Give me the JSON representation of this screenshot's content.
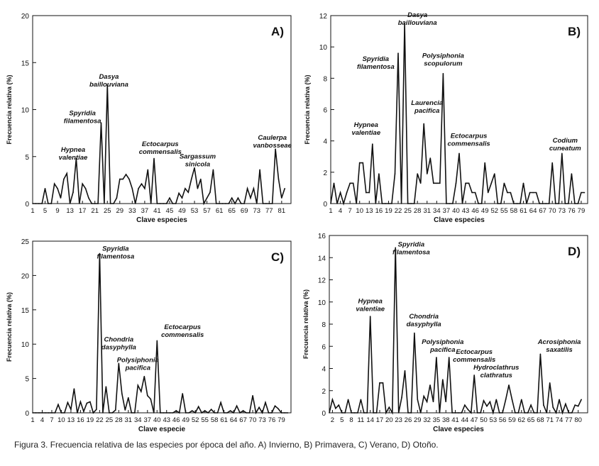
{
  "chart_data": [
    {
      "type": "line",
      "panel_label": "A)",
      "ylabel": "Frecuencia relativa (%)",
      "xlabel": "Clave especies",
      "ylim": [
        0,
        20
      ],
      "xlim": [
        1,
        84
      ],
      "yticks": [
        0,
        5,
        10,
        15,
        20
      ],
      "xticks": [
        1,
        5,
        9,
        13,
        17,
        21,
        25,
        29,
        33,
        37,
        41,
        45,
        49,
        53,
        57,
        61,
        65,
        69,
        73,
        77,
        81
      ],
      "x": [
        1,
        2,
        3,
        4,
        5,
        6,
        7,
        8,
        9,
        10,
        11,
        12,
        13,
        14,
        15,
        16,
        17,
        18,
        19,
        20,
        21,
        22,
        23,
        24,
        25,
        26,
        27,
        28,
        29,
        30,
        31,
        32,
        33,
        34,
        35,
        36,
        37,
        38,
        39,
        40,
        41,
        42,
        43,
        44,
        45,
        46,
        47,
        48,
        49,
        50,
        51,
        52,
        53,
        54,
        55,
        56,
        57,
        58,
        59,
        60,
        61,
        62,
        63,
        64,
        65,
        66,
        67,
        68,
        69,
        70,
        71,
        72,
        73,
        74,
        75,
        76,
        77,
        78,
        79,
        80,
        81,
        82
      ],
      "values": [
        0,
        0,
        0,
        0,
        1.6,
        0,
        0,
        2.1,
        1.6,
        0.6,
        2.6,
        3.2,
        0,
        1.2,
        4.8,
        0,
        2.1,
        1.6,
        0.6,
        0,
        0,
        0,
        8.6,
        0,
        12.6,
        0,
        0,
        0.6,
        2.6,
        2.6,
        3.1,
        2.6,
        1.6,
        0,
        1.6,
        2.1,
        1.6,
        3.6,
        0,
        4.8,
        0,
        0,
        0,
        0,
        0.6,
        0,
        0,
        1.1,
        0.6,
        1.6,
        1.2,
        2.6,
        3.8,
        1.6,
        2.6,
        0,
        0.6,
        1.2,
        3.6,
        0,
        0,
        0,
        0,
        0,
        0.6,
        0,
        0.6,
        0,
        0,
        1.6,
        0.6,
        1.6,
        0,
        3.6,
        0,
        0,
        0,
        0,
        5.8,
        2.6,
        0.6,
        1.6
      ],
      "annotations": [
        {
          "text": [
            "Hypnea",
            "valentiae"
          ],
          "x": 14,
          "y": 5.5
        },
        {
          "text": [
            "Spyridia",
            "filamentosa"
          ],
          "x": 17,
          "y": 9.4
        },
        {
          "text": [
            "Dasya",
            "baillouviana"
          ],
          "x": 25.5,
          "y": 13.3
        },
        {
          "text": [
            "Ectocarpus",
            "commensalis"
          ],
          "x": 42,
          "y": 6.1
        },
        {
          "text": [
            "Sargassum",
            "sinicola"
          ],
          "x": 54,
          "y": 4.8
        },
        {
          "text": [
            "Caulerpa",
            "vanbosseae"
          ],
          "x": 78,
          "y": 6.8
        }
      ]
    },
    {
      "type": "line",
      "panel_label": "B)",
      "ylabel": "Frecuencia relativa (%)",
      "xlabel": "Clave especies",
      "ylim": [
        0,
        12
      ],
      "xlim": [
        1,
        81
      ],
      "yticks": [
        0,
        2,
        4,
        6,
        8,
        10,
        12
      ],
      "xticks": [
        1,
        4,
        7,
        10,
        13,
        16,
        19,
        22,
        25,
        28,
        31,
        34,
        37,
        40,
        43,
        46,
        49,
        52,
        55,
        58,
        61,
        64,
        67,
        70,
        73,
        76,
        79
      ],
      "x": [
        1,
        2,
        3,
        4,
        5,
        6,
        7,
        8,
        9,
        10,
        11,
        12,
        13,
        14,
        15,
        16,
        17,
        18,
        19,
        20,
        21,
        22,
        23,
        24,
        25,
        26,
        27,
        28,
        29,
        30,
        31,
        32,
        33,
        34,
        35,
        36,
        37,
        38,
        39,
        40,
        41,
        42,
        43,
        44,
        45,
        46,
        47,
        48,
        49,
        50,
        51,
        52,
        53,
        54,
        55,
        56,
        57,
        58,
        59,
        60,
        61,
        62,
        63,
        64,
        65,
        66,
        67,
        68,
        69,
        70,
        71,
        72,
        73,
        74,
        75,
        76,
        77,
        78,
        79,
        80
      ],
      "values": [
        0,
        1.3,
        0,
        0.7,
        0,
        0.7,
        1.3,
        1.3,
        0,
        2.6,
        2.6,
        0.7,
        0.7,
        3.8,
        0,
        1.9,
        0,
        0,
        0,
        0,
        1.9,
        9.6,
        0,
        11.5,
        0,
        0,
        0,
        1.9,
        1.3,
        5.1,
        1.9,
        2.9,
        1.3,
        1.3,
        1.3,
        8.3,
        0,
        0,
        0,
        1.3,
        3.2,
        0,
        1.3,
        1.3,
        0.7,
        0.7,
        0,
        0,
        2.6,
        0.7,
        1.3,
        1.9,
        0,
        0,
        1.3,
        0.7,
        0.7,
        0,
        0,
        0,
        1.3,
        0,
        0.7,
        0.7,
        0.7,
        0,
        0,
        0,
        0,
        2.6,
        0,
        0,
        3.2,
        0,
        0,
        1.9,
        0,
        0,
        0.7,
        0.7
      ],
      "annotations": [
        {
          "text": [
            "Hypnea",
            "valentiae"
          ],
          "x": 12,
          "y": 4.9
        },
        {
          "text": [
            "Spyridia",
            "filamentosa"
          ],
          "x": 15,
          "y": 9.1
        },
        {
          "text": [
            "Dasya",
            "baillouviana"
          ],
          "x": 28,
          "y": 11.9
        },
        {
          "text": [
            "Laurencia",
            "pacifica"
          ],
          "x": 31,
          "y": 6.3
        },
        {
          "text": [
            "Polysiphonia",
            "scopulorum"
          ],
          "x": 36,
          "y": 9.3
        },
        {
          "text": [
            "Ectocarpus",
            "commensalis"
          ],
          "x": 44,
          "y": 4.2
        },
        {
          "text": [
            "Codium",
            "cuneatum"
          ],
          "x": 74,
          "y": 3.9
        }
      ]
    },
    {
      "type": "line",
      "panel_label": "C)",
      "ylabel": "Frecuencia relativa (%)",
      "xlabel": "Clave especie",
      "ylim": [
        0,
        25
      ],
      "xlim": [
        1,
        82
      ],
      "yticks": [
        0,
        5,
        10,
        15,
        20,
        25
      ],
      "xticks": [
        1,
        4,
        7,
        10,
        13,
        16,
        19,
        22,
        25,
        28,
        31,
        34,
        37,
        40,
        43,
        46,
        49,
        52,
        55,
        58,
        61,
        64,
        67,
        70,
        73,
        76,
        79
      ],
      "x": [
        1,
        2,
        3,
        4,
        5,
        6,
        7,
        8,
        9,
        10,
        11,
        12,
        13,
        14,
        15,
        16,
        17,
        18,
        19,
        20,
        21,
        22,
        23,
        24,
        25,
        26,
        27,
        28,
        29,
        30,
        31,
        32,
        33,
        34,
        35,
        36,
        37,
        38,
        39,
        40,
        41,
        42,
        43,
        44,
        45,
        46,
        47,
        48,
        49,
        50,
        51,
        52,
        53,
        54,
        55,
        56,
        57,
        58,
        59,
        60,
        61,
        62,
        63,
        64,
        65,
        66,
        67,
        68,
        69,
        70,
        71,
        72,
        73,
        74,
        75,
        76,
        77,
        78,
        79,
        80,
        81
      ],
      "values": [
        0,
        0,
        0,
        0,
        0,
        0,
        0,
        0,
        1.2,
        0,
        0,
        1.5,
        0.5,
        3.5,
        0,
        1.6,
        0.2,
        1.4,
        1.6,
        0,
        0.5,
        23.2,
        0,
        3.8,
        0,
        0,
        0.4,
        7.2,
        2.8,
        0.4,
        2.2,
        0,
        0,
        4.0,
        3.1,
        5.3,
        2.5,
        2.0,
        0,
        10.5,
        0,
        0,
        0,
        0,
        0,
        0.3,
        0,
        2.8,
        0,
        0,
        0.3,
        0,
        0.9,
        0,
        0.3,
        0,
        0.5,
        0,
        0,
        1.5,
        0,
        0,
        0.3,
        0,
        1.0,
        0,
        0.3,
        0,
        0,
        2.5,
        0,
        0.8,
        0,
        1.5,
        0,
        0,
        1.0,
        0.6,
        0,
        0,
        0
      ],
      "annotations": [
        {
          "text": [
            "Spyridia",
            "filamentosa"
          ],
          "x": 27,
          "y": 23.6
        },
        {
          "text": [
            "Chondria",
            "dasyphylla"
          ],
          "x": 28,
          "y": 10.4
        },
        {
          "text": [
            "Polysiphonia",
            "pacifica"
          ],
          "x": 34,
          "y": 7.4
        },
        {
          "text": [
            "Ectocarpus",
            "commensalis"
          ],
          "x": 48,
          "y": 12.2
        }
      ]
    },
    {
      "type": "line",
      "panel_label": "D)",
      "ylabel": "Frecuencia relativa (%)",
      "xlabel": "Clave especies",
      "ylim": [
        0,
        16
      ],
      "xlim": [
        1,
        83
      ],
      "yticks": [
        0,
        2,
        4,
        6,
        8,
        10,
        12,
        14,
        16
      ],
      "xticks": [
        2,
        5,
        8,
        11,
        14,
        17,
        20,
        23,
        26,
        29,
        32,
        35,
        38,
        41,
        44,
        47,
        50,
        53,
        56,
        59,
        62,
        65,
        68,
        71,
        74,
        77,
        80
      ],
      "x": [
        1,
        2,
        3,
        4,
        5,
        6,
        7,
        8,
        9,
        10,
        11,
        12,
        13,
        14,
        15,
        16,
        17,
        18,
        19,
        20,
        21,
        22,
        23,
        24,
        25,
        26,
        27,
        28,
        29,
        30,
        31,
        32,
        33,
        34,
        35,
        36,
        37,
        38,
        39,
        40,
        41,
        42,
        43,
        44,
        45,
        46,
        47,
        48,
        49,
        50,
        51,
        52,
        53,
        54,
        55,
        56,
        57,
        58,
        59,
        60,
        61,
        62,
        63,
        64,
        65,
        66,
        67,
        68,
        69,
        70,
        71,
        72,
        73,
        74,
        75,
        76,
        77,
        78,
        79,
        80,
        81
      ],
      "values": [
        0,
        1.2,
        0.4,
        0.7,
        0,
        0,
        1.2,
        0,
        0,
        0,
        1.2,
        0,
        0,
        8.7,
        0,
        0,
        2.7,
        2.7,
        0,
        0.5,
        0,
        14.9,
        0,
        1.4,
        3.8,
        0,
        0,
        7.2,
        1.2,
        0,
        1.5,
        1.0,
        2.5,
        1.0,
        5.0,
        0,
        3.0,
        1.0,
        5.0,
        0,
        0,
        0,
        0,
        0.7,
        0.3,
        0,
        3.4,
        0,
        0,
        1.1,
        0.6,
        1.0,
        0,
        1.2,
        0,
        0,
        1.2,
        2.5,
        1.2,
        0,
        0,
        1.2,
        0,
        0,
        0.7,
        0,
        0,
        5.3,
        0.7,
        0,
        2.7,
        0.5,
        0,
        1.2,
        0,
        0.8,
        0,
        0,
        0.7,
        0.6,
        1.2
      ],
      "annotations": [
        {
          "text": [
            "Hypnea",
            "valentiae"
          ],
          "x": 14,
          "y": 9.9
        },
        {
          "text": [
            "Spyridia",
            "filamentosa"
          ],
          "x": 27,
          "y": 15.0
        },
        {
          "text": [
            "Chondria",
            "dasyphylla"
          ],
          "x": 31,
          "y": 8.5
        },
        {
          "text": [
            "Polysiphonia",
            "pacifica"
          ],
          "x": 37,
          "y": 6.2
        },
        {
          "text": [
            "Ectocarpus",
            "commensalis"
          ],
          "x": 47,
          "y": 5.3
        },
        {
          "text": [
            "Hydroclathrus",
            "clathratus"
          ],
          "x": 54,
          "y": 3.9
        },
        {
          "text": [
            "Acrosiphonia",
            "saxatilis"
          ],
          "x": 74,
          "y": 6.2
        }
      ]
    }
  ],
  "caption": "Figura 3. Frecuencia relativa de las especies por época del año. A) Invierno, B) Primavera, C) Verano, D) Otoño."
}
